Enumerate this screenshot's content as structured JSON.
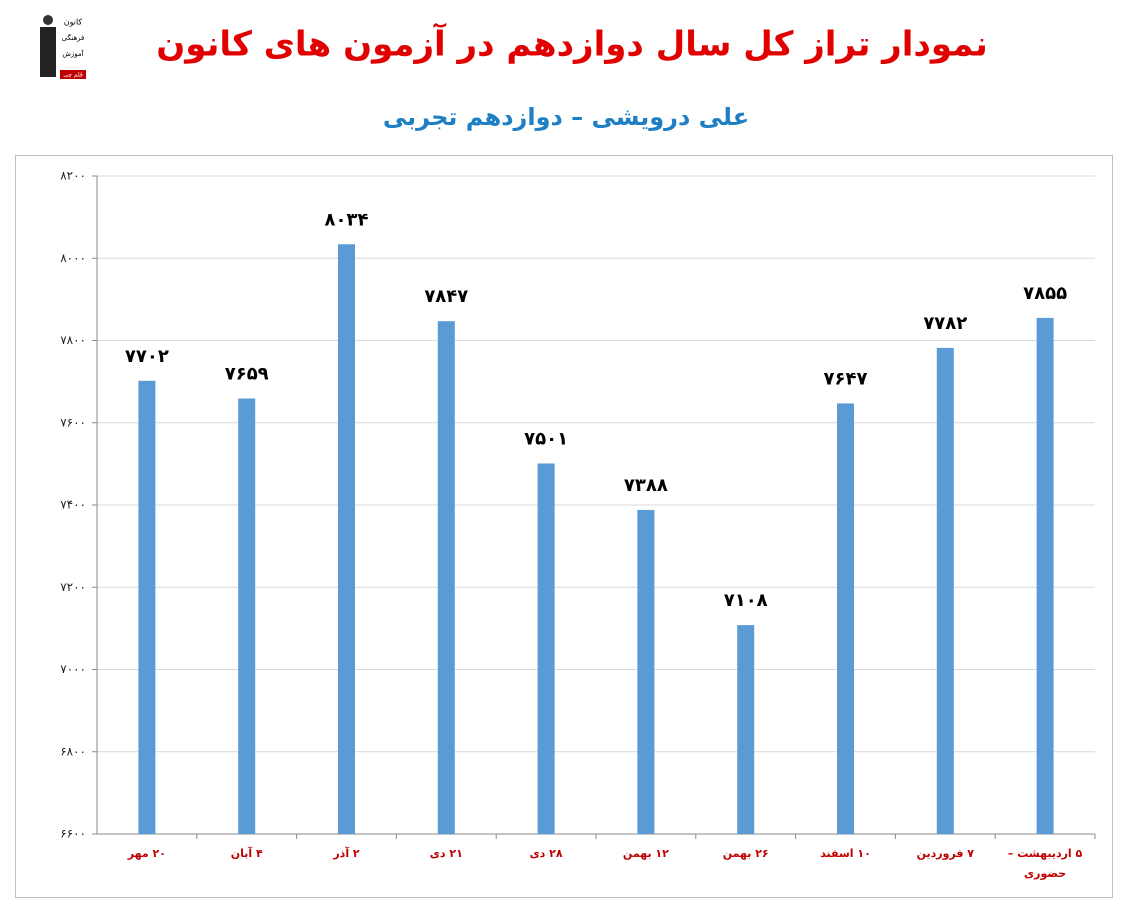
{
  "logo": {
    "lines": [
      "کانون",
      "فرهنگی",
      "آموزش",
      "قلم چی"
    ]
  },
  "chart_data": {
    "type": "bar",
    "title": "نمودار تراز کل سال دوازدهم در آزمون های کانون",
    "subtitle": "علی درویشی – دوازدهم تجربی",
    "categories": [
      "۲۰ مهر",
      "۴ آبان",
      "۲ آذر",
      "۲۱ دی",
      "۲۸ دی",
      "۱۲ بهمن",
      "۲۶ بهمن",
      "۱۰ اسفند",
      "۷ فروردین",
      "۵ اردیبهشت – حضوری"
    ],
    "values": [
      7702,
      7659,
      8034,
      7847,
      7501,
      7388,
      7108,
      7647,
      7782,
      7855
    ],
    "value_labels": [
      "۷۷۰۲",
      "۷۶۵۹",
      "۸۰۳۴",
      "۷۸۴۷",
      "۷۵۰۱",
      "۷۳۸۸",
      "۷۱۰۸",
      "۷۶۴۷",
      "۷۷۸۲",
      "۷۸۵۵"
    ],
    "color": "#5b9bd5",
    "ylim": [
      6600,
      8200
    ],
    "yticks": [
      {
        "value": 6600,
        "label": "۶۶۰۰"
      },
      {
        "value": 6800,
        "label": "۶۸۰۰"
      },
      {
        "value": 7000,
        "label": "۷۰۰۰"
      },
      {
        "value": 7200,
        "label": "۷۲۰۰"
      },
      {
        "value": 7400,
        "label": "۷۴۰۰"
      },
      {
        "value": 7600,
        "label": "۷۶۰۰"
      },
      {
        "value": 7800,
        "label": "۷۸۰۰"
      },
      {
        "value": 8000,
        "label": "۸۰۰۰"
      },
      {
        "value": 8200,
        "label": "۸۲۰۰"
      }
    ],
    "grid": true
  }
}
